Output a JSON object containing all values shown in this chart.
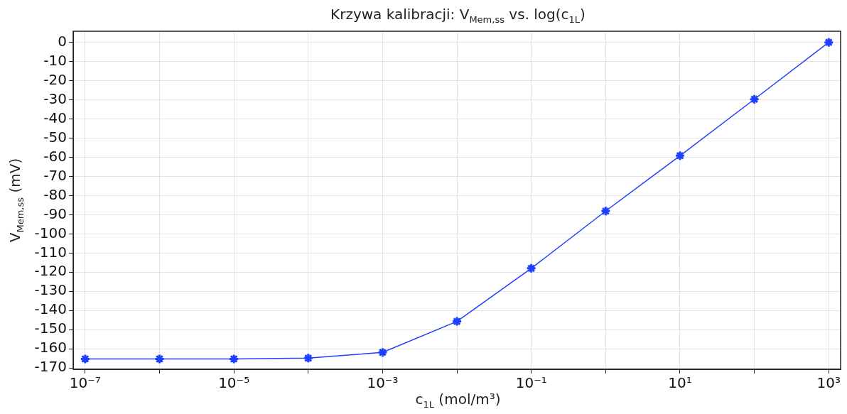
{
  "chart_data": {
    "type": "line",
    "title": "Krzywa kalibracji: V$_{Mem,ss}$ vs. log(c$_{1L}$)",
    "xlabel": "c$_{1L}$ (mol/m³)",
    "ylabel": "V$_{Mem,ss}$ (mV)",
    "x": [
      1e-07,
      1e-06,
      1e-05,
      0.0001,
      0.001,
      0.01,
      0.1,
      1,
      10,
      100,
      1000
    ],
    "series": [
      {
        "color": "#1f3fff",
        "values": [
          -165.3,
          -165.3,
          -165.3,
          -164.9,
          -161.9,
          -145.7,
          -118.0,
          -88.1,
          -59.2,
          -29.7,
          0
        ]
      }
    ],
    "log": "x",
    "xlim": [
      6.9e-08,
      1445
    ],
    "xticks": [
      {
        "value": 1e-07,
        "label": "10⁻⁷"
      },
      {
        "value": 1e-06,
        "label": null
      },
      {
        "value": 1e-05,
        "label": "10⁻⁵"
      },
      {
        "value": 0.0001,
        "label": null
      },
      {
        "value": 0.001,
        "label": "10⁻³"
      },
      {
        "value": 0.01,
        "label": null
      },
      {
        "value": 0.1,
        "label": "10⁻¹"
      },
      {
        "value": 1,
        "label": null
      },
      {
        "value": 10,
        "label": "10¹"
      },
      {
        "value": 100,
        "label": null
      },
      {
        "value": 1000,
        "label": "10³"
      }
    ],
    "ylim": [
      -170.7,
      5.8
    ],
    "yticks": [
      -170,
      -160,
      -150,
      -140,
      -130,
      -120,
      -110,
      -100,
      -90,
      -80,
      -70,
      -60,
      -50,
      -40,
      -30,
      -20,
      -10,
      0
    ],
    "grid": true,
    "marker": "cross",
    "line_style": "solid"
  }
}
